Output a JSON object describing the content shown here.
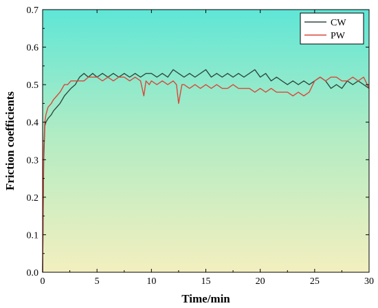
{
  "chart_data": {
    "type": "line",
    "title": "",
    "xlabel": "Time/min",
    "ylabel": "Friction coefficients",
    "xlim": [
      0,
      30
    ],
    "ylim": [
      0,
      0.7
    ],
    "xticks": [
      "0",
      "5",
      "10",
      "15",
      "20",
      "25",
      "30"
    ],
    "yticks": [
      "0.0",
      "0.1",
      "0.2",
      "0.3",
      "0.4",
      "0.5",
      "0.6",
      "0.7"
    ],
    "grid": false,
    "legend_position": "top-right",
    "background_gradient": [
      "#5fe6d6",
      "#b5ecc3",
      "#f3efbf"
    ],
    "series": [
      {
        "name": "CW",
        "color": "#2e4a3f",
        "x": [
          0,
          0.1,
          0.2,
          0.3,
          0.5,
          0.8,
          1.0,
          1.3,
          1.6,
          1.8,
          2.0,
          2.3,
          2.6,
          3.0,
          3.4,
          3.8,
          4.2,
          4.6,
          5.0,
          5.5,
          6.0,
          6.5,
          7.0,
          7.5,
          8.0,
          8.5,
          9.0,
          9.5,
          10.0,
          10.5,
          11.0,
          11.5,
          12.0,
          12.5,
          13.0,
          13.5,
          14.0,
          14.5,
          15.0,
          15.5,
          16.0,
          16.5,
          17.0,
          17.5,
          18.0,
          18.5,
          19.0,
          19.5,
          20.0,
          20.5,
          21.0,
          21.5,
          22.0,
          22.5,
          23.0,
          23.5,
          24.0,
          24.5,
          25.0,
          25.5,
          26.0,
          26.5,
          27.0,
          27.5,
          28.0,
          28.5,
          29.0,
          29.5,
          30.0
        ],
        "y": [
          0.0,
          0.3,
          0.39,
          0.4,
          0.41,
          0.42,
          0.43,
          0.44,
          0.45,
          0.46,
          0.47,
          0.48,
          0.49,
          0.5,
          0.52,
          0.53,
          0.52,
          0.53,
          0.52,
          0.53,
          0.52,
          0.53,
          0.52,
          0.53,
          0.52,
          0.53,
          0.52,
          0.53,
          0.53,
          0.52,
          0.53,
          0.52,
          0.54,
          0.53,
          0.52,
          0.53,
          0.52,
          0.53,
          0.54,
          0.52,
          0.53,
          0.52,
          0.53,
          0.52,
          0.53,
          0.52,
          0.53,
          0.54,
          0.52,
          0.53,
          0.51,
          0.52,
          0.51,
          0.5,
          0.51,
          0.5,
          0.51,
          0.5,
          0.51,
          0.52,
          0.51,
          0.49,
          0.5,
          0.49,
          0.51,
          0.5,
          0.51,
          0.5,
          0.49
        ]
      },
      {
        "name": "PW",
        "color": "#d9473a",
        "x": [
          0,
          0.1,
          0.2,
          0.3,
          0.5,
          0.8,
          1.0,
          1.3,
          1.6,
          1.8,
          2.0,
          2.3,
          2.6,
          3.0,
          3.4,
          3.8,
          4.2,
          4.6,
          5.0,
          5.5,
          6.0,
          6.5,
          7.0,
          7.5,
          8.0,
          8.5,
          9.0,
          9.3,
          9.5,
          9.8,
          10.0,
          10.5,
          11.0,
          11.5,
          12.0,
          12.3,
          12.5,
          12.8,
          13.0,
          13.5,
          14.0,
          14.5,
          15.0,
          15.5,
          16.0,
          16.5,
          17.0,
          17.5,
          18.0,
          18.5,
          19.0,
          19.5,
          20.0,
          20.5,
          21.0,
          21.5,
          22.0,
          22.5,
          23.0,
          23.5,
          24.0,
          24.5,
          25.0,
          25.5,
          26.0,
          26.5,
          27.0,
          27.5,
          28.0,
          28.5,
          29.0,
          29.5,
          30.0
        ],
        "y": [
          0.0,
          0.33,
          0.4,
          0.42,
          0.44,
          0.45,
          0.46,
          0.47,
          0.48,
          0.49,
          0.5,
          0.5,
          0.51,
          0.51,
          0.51,
          0.51,
          0.52,
          0.52,
          0.52,
          0.51,
          0.52,
          0.51,
          0.52,
          0.52,
          0.51,
          0.52,
          0.51,
          0.47,
          0.51,
          0.5,
          0.51,
          0.5,
          0.51,
          0.5,
          0.51,
          0.5,
          0.45,
          0.5,
          0.5,
          0.49,
          0.5,
          0.49,
          0.5,
          0.49,
          0.5,
          0.49,
          0.49,
          0.5,
          0.49,
          0.49,
          0.49,
          0.48,
          0.49,
          0.48,
          0.49,
          0.48,
          0.48,
          0.48,
          0.47,
          0.48,
          0.47,
          0.48,
          0.51,
          0.52,
          0.51,
          0.52,
          0.52,
          0.51,
          0.51,
          0.52,
          0.51,
          0.52,
          0.49
        ]
      }
    ]
  }
}
